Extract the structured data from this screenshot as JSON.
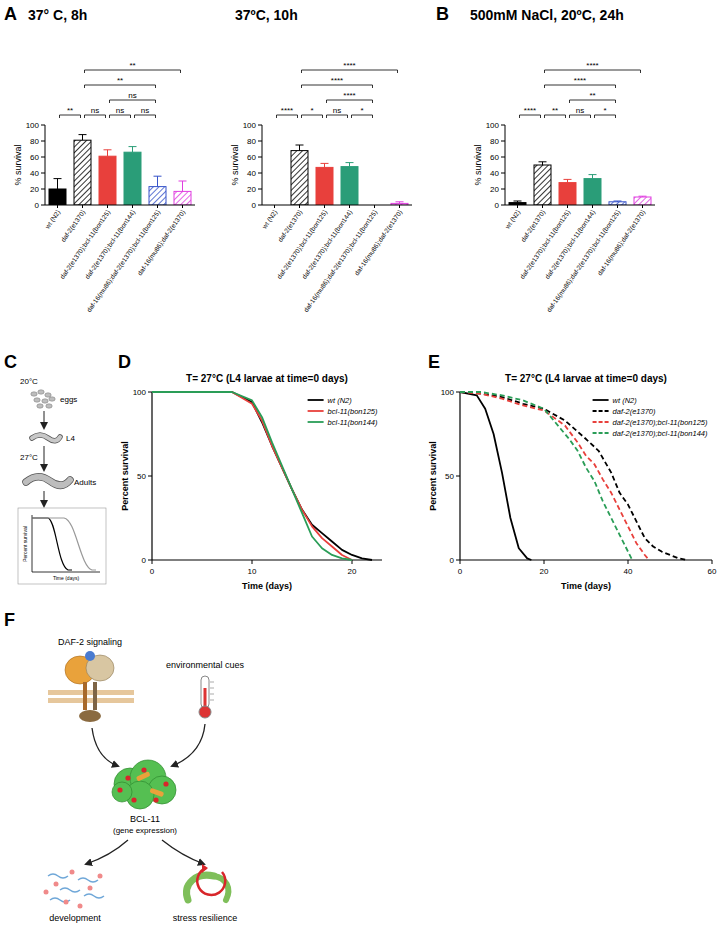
{
  "chart_data": [
    {
      "type": "bar",
      "panel_label": "A",
      "title": "37° C, 8h",
      "ylabel": "% survival",
      "categories": [
        "wt (N2)",
        "daf-2(e1370)",
        "daf-2(e1370);bcl-11(bon125)",
        "daf-2(e1370);bcl-11(bon144)",
        "daf-16(mu86);daf-2(e1370);bcl-11(bon125)",
        "daf-16(mu86);daf-2(e1370)"
      ],
      "values": [
        20,
        81,
        61,
        66,
        23,
        17
      ],
      "errors": [
        13,
        7,
        8,
        7,
        13,
        13
      ],
      "colors": [
        "#000000",
        "#000000",
        "#e8403c",
        "#2a9d78",
        "#3653c9",
        "#e03ee0"
      ],
      "ylim": [
        0,
        100
      ],
      "yticks": [
        0,
        20,
        40,
        60,
        80,
        100
      ],
      "annotations": [
        {
          "from": 0,
          "to": 1,
          "text": "**"
        },
        {
          "from": 1,
          "to": 2,
          "text": "ns"
        },
        {
          "from": 2,
          "to": 3,
          "text": "ns"
        },
        {
          "from": 3,
          "to": 4,
          "text": "ns"
        },
        {
          "from": 2,
          "to": 4,
          "text": "ns"
        },
        {
          "from": 1,
          "to": 4,
          "text": "**"
        },
        {
          "from": 1,
          "to": 5,
          "text": "**"
        }
      ]
    },
    {
      "type": "bar",
      "title": "37ºC, 10h",
      "ylabel": "% survival",
      "categories": [
        "wt (N2)",
        "daf-2(e1370)",
        "daf-2(e1370);bcl-11(bon125)",
        "daf-2(e1370);bcl-11(bon144)",
        "daf-16(mu86);daf-2(e1370);bcl-11(bon125)",
        "daf-16(mu86);daf-2(e1370)"
      ],
      "values": [
        0,
        68,
        47,
        48,
        0,
        2
      ],
      "errors": [
        0,
        7,
        5,
        5,
        0,
        2
      ],
      "colors": [
        "#000000",
        "#000000",
        "#e8403c",
        "#2a9d78",
        "#3653c9",
        "#e03ee0"
      ],
      "ylim": [
        0,
        100
      ],
      "yticks": [
        0,
        20,
        40,
        60,
        80,
        100
      ],
      "annotations": [
        {
          "from": 0,
          "to": 1,
          "text": "****"
        },
        {
          "from": 1,
          "to": 2,
          "text": "*"
        },
        {
          "from": 2,
          "to": 3,
          "text": "ns"
        },
        {
          "from": 3,
          "to": 4,
          "text": "*"
        },
        {
          "from": 2,
          "to": 4,
          "text": "****"
        },
        {
          "from": 1,
          "to": 4,
          "text": "****"
        },
        {
          "from": 1,
          "to": 5,
          "text": "****"
        }
      ]
    },
    {
      "type": "bar",
      "panel_label": "B",
      "title": "500mM NaCl, 20ºC, 24h",
      "ylabel": "% survival",
      "categories": [
        "wt (N2)",
        "daf-2(e1370)",
        "daf-2(e1370);bcl-11(bon125)",
        "daf-2(e1370);bcl-11(bon144)",
        "daf-16(mu86);daf-2(e1370);bcl-11(bon125)",
        "daf-16(mu86);daf-2(e1370)"
      ],
      "values": [
        3,
        50,
        28,
        33,
        4,
        10
      ],
      "errors": [
        2,
        4,
        4,
        5,
        1,
        1
      ],
      "colors": [
        "#000000",
        "#000000",
        "#e8403c",
        "#2a9d78",
        "#3653c9",
        "#e03ee0"
      ],
      "ylim": [
        0,
        100
      ],
      "yticks": [
        0,
        20,
        40,
        60,
        80,
        100
      ],
      "annotations": [
        {
          "from": 0,
          "to": 1,
          "text": "****"
        },
        {
          "from": 1,
          "to": 2,
          "text": "**"
        },
        {
          "from": 2,
          "to": 3,
          "text": "ns"
        },
        {
          "from": 3,
          "to": 4,
          "text": "*"
        },
        {
          "from": 2,
          "to": 4,
          "text": "**"
        },
        {
          "from": 1,
          "to": 4,
          "text": "****"
        },
        {
          "from": 1,
          "to": 5,
          "text": "****"
        }
      ]
    },
    {
      "type": "line",
      "panel_label": "D",
      "title": "T= 27°C (L4 larvae at time=0 days)",
      "xlabel": "Time (days)",
      "ylabel": "Percent survival",
      "xlim": [
        0,
        23
      ],
      "xticks": [
        0,
        10,
        20
      ],
      "ylim": [
        0,
        100
      ],
      "yticks": [
        0,
        50,
        100
      ],
      "legend": "top-right",
      "series": [
        {
          "name": "wt (N2)",
          "color": "#000000",
          "line_style": "solid",
          "x": [
            0,
            8,
            10,
            11,
            12,
            13,
            14,
            15,
            16,
            17,
            18,
            19,
            20,
            21,
            22
          ],
          "values": [
            100,
            100,
            94,
            82,
            68,
            55,
            42,
            30,
            21,
            16,
            11,
            6,
            3,
            1,
            0
          ]
        },
        {
          "name": "bcl-11(bon125)",
          "color": "#e8403c",
          "line_style": "solid",
          "x": [
            0,
            8,
            10,
            11,
            12,
            13,
            14,
            15,
            16,
            17,
            18,
            19,
            20
          ],
          "values": [
            100,
            100,
            93,
            83,
            68,
            55,
            42,
            30,
            20,
            13,
            8,
            3,
            0
          ]
        },
        {
          "name": "bcl-11(bon144)",
          "color": "#2a9d57",
          "line_style": "solid",
          "x": [
            0,
            8,
            10,
            11,
            12,
            13,
            14,
            15,
            16,
            17,
            18,
            19,
            20
          ],
          "values": [
            100,
            100,
            95,
            85,
            70,
            56,
            42,
            28,
            14,
            7,
            3,
            1,
            0
          ]
        }
      ]
    },
    {
      "type": "line",
      "panel_label": "E",
      "title": "T= 27°C (L4 larvae at time=0 days)",
      "xlabel": "Time (days)",
      "ylabel": "Percent survival",
      "xlim": [
        0,
        60
      ],
      "xticks": [
        0,
        20,
        40,
        60
      ],
      "ylim": [
        0,
        100
      ],
      "yticks": [
        0,
        50,
        100
      ],
      "legend": "top-right",
      "series": [
        {
          "name": "wt (N2)",
          "color": "#000000",
          "line_style": "solid",
          "x": [
            0,
            4,
            6,
            8,
            10,
            12,
            14,
            16,
            17
          ],
          "values": [
            100,
            98,
            90,
            75,
            52,
            25,
            7,
            1,
            0
          ]
        },
        {
          "name": "daf-2(e1370)",
          "color": "#000000",
          "line_style": "dashed",
          "x": [
            0,
            5,
            10,
            15,
            20,
            25,
            30,
            33,
            36,
            38,
            40,
            42,
            44,
            46,
            48,
            50,
            52,
            54
          ],
          "values": [
            100,
            99,
            97,
            93,
            90,
            83,
            72,
            65,
            52,
            40,
            33,
            23,
            13,
            8,
            5,
            3,
            1,
            0
          ]
        },
        {
          "name": "daf-2(e1370);bcl-11(bon125)",
          "color": "#e8403c",
          "line_style": "dashed",
          "x": [
            0,
            5,
            10,
            15,
            20,
            25,
            28,
            30,
            32,
            34,
            36,
            38,
            40,
            42,
            44,
            45
          ],
          "values": [
            100,
            99,
            96,
            92,
            89,
            80,
            70,
            62,
            57,
            48,
            40,
            30,
            20,
            10,
            3,
            0
          ]
        },
        {
          "name": "daf-2(e1370);bcl-11(bon144)",
          "color": "#2a9d57",
          "line_style": "dashed",
          "x": [
            0,
            5,
            10,
            15,
            20,
            24,
            26,
            28,
            30,
            32,
            34,
            36,
            38,
            40,
            41
          ],
          "values": [
            100,
            100,
            98,
            95,
            90,
            78,
            72,
            65,
            55,
            47,
            35,
            25,
            15,
            5,
            0
          ]
        }
      ]
    }
  ],
  "diagrams": [
    {
      "panel_label": "C",
      "start_temperature": "20°C",
      "eggs": "eggs",
      "larva": "L4",
      "shift_temperature": "27°C",
      "adults": "Adults",
      "ylabel": "Percent survival",
      "xlabel": "Time (days)"
    },
    {
      "panel_label": "F",
      "signal": "DAF-2 signaling",
      "cue": "environmental cues",
      "factor": "BCL-11",
      "factor_role": "(gene expression)",
      "outcomes": [
        "development",
        "stress resilience"
      ]
    }
  ]
}
